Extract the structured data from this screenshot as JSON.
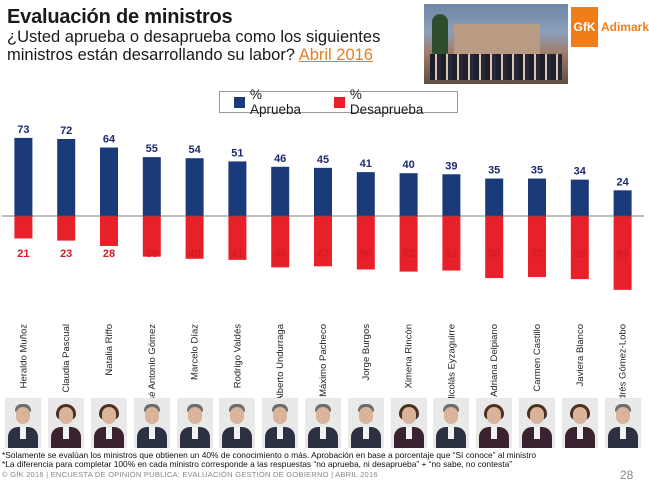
{
  "header": {
    "title": "Evaluación de ministros",
    "question": "¿Usted aprueba o desaprueba como los siguientes ministros están desarrollando su labor?",
    "period": "Abril 2016"
  },
  "logo": {
    "mark": "GfK",
    "name": "Adimark"
  },
  "colors": {
    "approve": "#1a3a7a",
    "disapprove": "#e8202a",
    "approve_text": "#1f2a6b",
    "disapprove_text": "#d41a22"
  },
  "chart_data": {
    "type": "bar",
    "title": "",
    "xlabel": "",
    "ylabel": "",
    "ylim": [
      -70,
      73
    ],
    "grid": false,
    "legend_position": "top-center",
    "categories": [
      "Heraldo Muñoz",
      "Claudia Pascual",
      "Natalia Riffo",
      "José Antonio Gómez",
      "Marcelo Díaz",
      "Rodrigo Valdés",
      "Alberto Undurraga",
      "Máximo Pacheco",
      "Jorge Burgos",
      "Ximena Rincón",
      "Nicolás Eyzaguirre",
      "Adriana Delpiano",
      "Carmen Castillo",
      "Javiera Blanco",
      "Andrés Gómez-Lobo"
    ],
    "series": [
      {
        "name": "% Aprueba",
        "values": [
          73,
          72,
          64,
          55,
          54,
          51,
          46,
          45,
          41,
          40,
          39,
          35,
          35,
          34,
          24
        ]
      },
      {
        "name": "% Desaprueba",
        "values": [
          21,
          23,
          28,
          38,
          40,
          41,
          48,
          47,
          50,
          52,
          51,
          58,
          57,
          59,
          69
        ]
      }
    ]
  },
  "photos": {
    "faces": [
      {
        "person": "Heraldo Muñoz",
        "icon": "portrait-icon"
      },
      {
        "person": "Claudia Pascual",
        "icon": "portrait-icon"
      },
      {
        "person": "Natalia Riffo",
        "icon": "portrait-icon"
      },
      {
        "person": "José Antonio Gómez",
        "icon": "portrait-icon"
      },
      {
        "person": "Marcelo Díaz",
        "icon": "portrait-icon"
      },
      {
        "person": "Rodrigo Valdés",
        "icon": "portrait-icon"
      },
      {
        "person": "Alberto Undurraga",
        "icon": "portrait-icon"
      },
      {
        "person": "Máximo Pacheco",
        "icon": "portrait-icon"
      },
      {
        "person": "Jorge Burgos",
        "icon": "portrait-icon"
      },
      {
        "person": "Ximena Rincón",
        "icon": "portrait-icon"
      },
      {
        "person": "Nicolás Eyzaguirre",
        "icon": "portrait-icon"
      },
      {
        "person": "Adriana Delpiano",
        "icon": "portrait-icon"
      },
      {
        "person": "Carmen Castillo",
        "icon": "portrait-icon"
      },
      {
        "person": "Javiera Blanco",
        "icon": "portrait-icon"
      },
      {
        "person": "Andrés Gómez-Lobo",
        "icon": "portrait-icon"
      }
    ]
  },
  "notes": {
    "line1": "*Solamente se evalúan los ministros que obtienen un 40% de conocimiento o más. Aprobación en base a porcentaje que “Sí conoce” al ministro",
    "line2": "*La diferencia para completar 100% en cada ministro corresponde a las respuestas “no aprueba, ni desaprueba” + “no sabe, no contesta”"
  },
  "footer": {
    "text": "© GfK 2016 | ENCUESTA DE OPINIÓN PÚBLICA: EVALUACIÓN GESTIÓN DE GOBIERNO | ABRIL 2016",
    "page": "28"
  }
}
